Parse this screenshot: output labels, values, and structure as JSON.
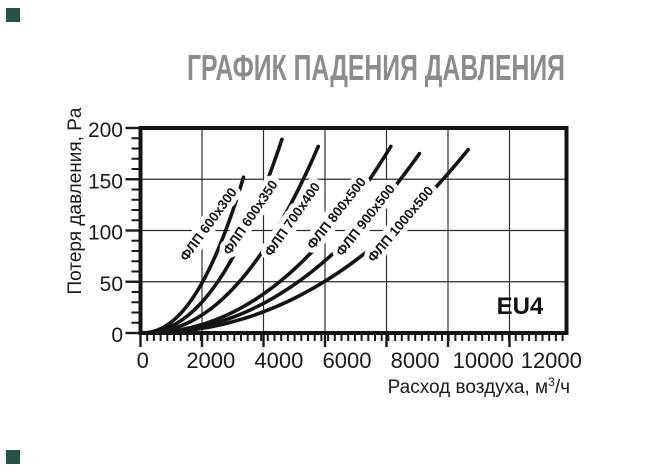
{
  "page": {
    "background": "#ffffff"
  },
  "corner_marks": {
    "color": "#235248"
  },
  "title": {
    "text": "ГРАФИК  ПАДЕНИЯ ДАВЛЕНИЯ",
    "color": "#898d90"
  },
  "efficiency_class": "EU4",
  "axes": {
    "x": {
      "label_main": "Расход воздуха, м",
      "label_sup": "3",
      "label_tail": "/ч",
      "ticks": [
        "0",
        "2000",
        "4000",
        "6000",
        "8000",
        "10000",
        "12000"
      ]
    },
    "y": {
      "label": "Потеря давления, Pa",
      "ticks": [
        "0",
        "50",
        "100",
        "150",
        "200"
      ]
    }
  },
  "chart_data": {
    "type": "line",
    "title": "ГРАФИК ПАДЕНИЯ ДАВЛЕНИЯ",
    "xlabel": "Расход воздуха, м3/ч",
    "ylabel": "Потеря давления, Pa",
    "xlim": [
      0,
      12600
    ],
    "ylim": [
      0,
      200
    ],
    "x_tick_step": 2000,
    "y_tick_step": 50,
    "grid": true,
    "legend_position": "labels-along-curves",
    "annotation": "EU4",
    "curve_exponent": 2.2,
    "series": [
      {
        "name": "ФЛП 600x300",
        "points": [
          [
            0,
            0
          ],
          [
            2020,
            50
          ],
          [
            2770,
            100
          ],
          [
            3350,
            152
          ]
        ]
      },
      {
        "name": "ФЛП 600x350",
        "points": [
          [
            0,
            0
          ],
          [
            2510,
            50
          ],
          [
            3450,
            100
          ],
          [
            4140,
            150
          ],
          [
            4600,
            189
          ]
        ]
      },
      {
        "name": "ФЛП 700x400",
        "points": [
          [
            0,
            0
          ],
          [
            3210,
            50
          ],
          [
            4400,
            100
          ],
          [
            5290,
            150
          ],
          [
            5780,
            182
          ]
        ]
      },
      {
        "name": "ФЛП 800x500",
        "points": [
          [
            0,
            0
          ],
          [
            4530,
            50
          ],
          [
            6200,
            100
          ],
          [
            7460,
            150
          ],
          [
            8140,
            182
          ]
        ]
      },
      {
        "name": "ФЛП 900x500",
        "points": [
          [
            0,
            0
          ],
          [
            5130,
            50
          ],
          [
            7030,
            100
          ],
          [
            8460,
            150
          ],
          [
            9070,
            175
          ]
        ]
      },
      {
        "name": "ФЛП 1000x500",
        "points": [
          [
            0,
            0
          ],
          [
            5970,
            50
          ],
          [
            8180,
            100
          ],
          [
            9850,
            150
          ],
          [
            10660,
            179
          ]
        ]
      }
    ]
  }
}
